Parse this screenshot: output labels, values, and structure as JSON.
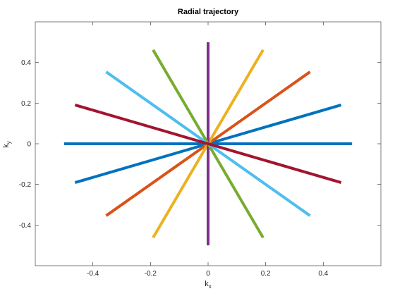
{
  "chart_data": {
    "type": "line",
    "title": "Radial trajectory",
    "xlabel": "k",
    "xlabel_sub": "x",
    "ylabel": "k",
    "ylabel_sub": "y",
    "xlim": [
      -0.6,
      0.6
    ],
    "ylim": [
      -0.6,
      0.6
    ],
    "grid": false,
    "x_ticks": [
      -0.4,
      -0.2,
      0,
      0.2,
      0.4
    ],
    "x_tick_labels": [
      "-0.4",
      "-0.2",
      "0",
      "0.2",
      "0.4"
    ],
    "y_ticks": [
      -0.4,
      -0.2,
      0,
      0.2,
      0.4
    ],
    "y_tick_labels": [
      "-0.4",
      "-0.2",
      "0",
      "0.2",
      "0.4"
    ],
    "series": [
      {
        "color": "#0072bd",
        "x": [
          -0.5,
          0.5
        ],
        "y": [
          0,
          0
        ]
      },
      {
        "color": "#0072bd",
        "x": [
          -0.462,
          0.462
        ],
        "y": [
          -0.191,
          0.191
        ]
      },
      {
        "color": "#d95319",
        "x": [
          -0.354,
          0.354
        ],
        "y": [
          -0.354,
          0.354
        ]
      },
      {
        "color": "#edb120",
        "x": [
          -0.191,
          0.191
        ],
        "y": [
          -0.462,
          0.462
        ]
      },
      {
        "color": "#7e2f8e",
        "x": [
          0,
          0
        ],
        "y": [
          -0.5,
          0.5
        ]
      },
      {
        "color": "#77ac30",
        "x": [
          -0.191,
          0.191
        ],
        "y": [
          0.462,
          -0.462
        ]
      },
      {
        "color": "#4dbeee",
        "x": [
          -0.354,
          0.354
        ],
        "y": [
          0.354,
          -0.354
        ]
      },
      {
        "color": "#a2142f",
        "x": [
          -0.462,
          0.462
        ],
        "y": [
          0.191,
          -0.191
        ]
      }
    ]
  }
}
